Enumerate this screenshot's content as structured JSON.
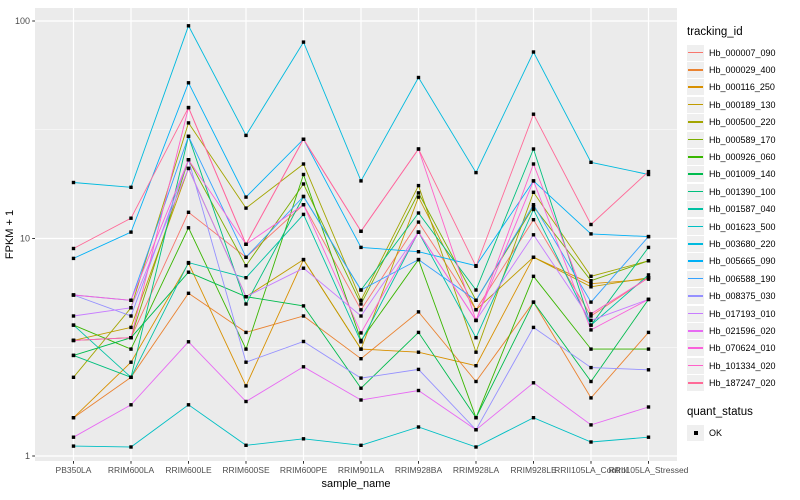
{
  "chart_data": {
    "type": "line",
    "xlabel": "sample_name",
    "ylabel": "FPKM + 1",
    "y_scale": "log10",
    "y_ticks": [
      {
        "label": "1",
        "value": 1
      },
      {
        "label": "10",
        "value": 10
      },
      {
        "label": "100",
        "value": 100
      }
    ],
    "y_minor_log": [
      0.5,
      1.5
    ],
    "ylim": [
      1,
      115
    ],
    "grid": "on",
    "legend_position": "right",
    "panel_bg": "#EBEBEB",
    "grid_color": "#FFFFFF",
    "axis_text_color": "#4D4D4D",
    "tick_color": "#333333",
    "marker_color": "#000000",
    "categories": [
      "PB350LA",
      "RRIM600LA",
      "RRIM600LE",
      "RRIM600SE",
      "RRIM600PE",
      "RRIM901LA",
      "RRIM928BA",
      "RRIM928LA",
      "RRIM928LE",
      "RRII105LA_Control",
      "RRII105LA_Stressed"
    ],
    "legend": {
      "color_title": "tracking_id",
      "shape_title": "quant_status",
      "shape_value": "OK"
    },
    "series": [
      {
        "tracking_id": "Hb_000007_090",
        "color": "#F8766D",
        "values": [
          3.4,
          3.5,
          13.2,
          8.2,
          14.3,
          4.7,
          11.9,
          4.7,
          12.2,
          4.4,
          6.6
        ]
      },
      {
        "tracking_id": "Hb_000029_400",
        "color": "#EA8331",
        "values": [
          1.5,
          2.3,
          5.6,
          3.7,
          4.4,
          2.8,
          4.6,
          2.2,
          5.1,
          1.85,
          3.7
        ]
      },
      {
        "tracking_id": "Hb_000116_250",
        "color": "#D89000",
        "values": [
          1.5,
          2.7,
          7.7,
          2.1,
          8.0,
          3.1,
          3.0,
          2.6,
          8.2,
          6.2,
          6.5
        ]
      },
      {
        "tracking_id": "Hb_000189_130",
        "color": "#C09B00",
        "values": [
          3.4,
          3.9,
          21,
          5.4,
          8.0,
          3.1,
          15.5,
          4.7,
          8.2,
          6.0,
          6.6
        ]
      },
      {
        "tracking_id": "Hb_000500_220",
        "color": "#A3A500",
        "values": [
          2.3,
          4.8,
          34,
          13.8,
          22,
          5.2,
          17.5,
          3.0,
          16.3,
          6.7,
          7.9
        ]
      },
      {
        "tracking_id": "Hb_000589_170",
        "color": "#7CAE00",
        "values": [
          3.4,
          3.5,
          23,
          7.5,
          17.8,
          5.0,
          16.2,
          5.2,
          14.0,
          6.4,
          7.9
        ]
      },
      {
        "tracking_id": "Hb_000926_060",
        "color": "#39B600",
        "values": [
          4.0,
          3.1,
          11.2,
          3.1,
          19.7,
          3.4,
          8.0,
          1.5,
          6.7,
          3.1,
          3.1
        ]
      },
      {
        "tracking_id": "Hb_001009_140",
        "color": "#00BB4E",
        "values": [
          2.9,
          3.5,
          7.0,
          5.4,
          4.9,
          2.05,
          3.7,
          1.5,
          5.1,
          2.2,
          5.25
        ]
      },
      {
        "tracking_id": "Hb_001390_100",
        "color": "#00BF7D",
        "values": [
          2.9,
          2.3,
          29.5,
          5.0,
          15.6,
          5.8,
          13.1,
          5.8,
          25.8,
          4.0,
          9.1
        ]
      },
      {
        "tracking_id": "Hb_001587_040",
        "color": "#00C1A3",
        "values": [
          4.0,
          2.3,
          7.75,
          6.6,
          12.9,
          3.35,
          10.7,
          3.5,
          13.6,
          4.0,
          6.8
        ]
      },
      {
        "tracking_id": "Hb_001623_500",
        "color": "#00BFC4",
        "values": [
          1.11,
          1.1,
          1.72,
          1.12,
          1.2,
          1.12,
          1.36,
          1.1,
          1.5,
          1.16,
          1.22
        ]
      },
      {
        "tracking_id": "Hb_003680_220",
        "color": "#00BADE",
        "values": [
          18.1,
          17.2,
          95,
          29.8,
          80,
          18.4,
          55,
          20.1,
          72,
          22.4,
          19.7
        ]
      },
      {
        "tracking_id": "Hb_005665_090",
        "color": "#00B0F6",
        "values": [
          8.1,
          10.7,
          52,
          15.5,
          28.6,
          9.1,
          8.7,
          7.5,
          18.4,
          10.5,
          10.2
        ]
      },
      {
        "tracking_id": "Hb_006588_190",
        "color": "#35A2FF",
        "values": [
          5.5,
          5.2,
          29.5,
          8.2,
          15.6,
          5.8,
          8.0,
          5.2,
          14.3,
          5.1,
          10.2
        ]
      },
      {
        "tracking_id": "Hb_008375_030",
        "color": "#9590FF",
        "values": [
          5.5,
          4.4,
          23,
          2.7,
          3.36,
          2.28,
          2.5,
          1.32,
          3.9,
          2.55,
          2.49
        ]
      },
      {
        "tracking_id": "Hb_017193_010",
        "color": "#C77CFF",
        "values": [
          4.4,
          4.8,
          21,
          5.4,
          7.3,
          4.4,
          10.7,
          4.2,
          10.4,
          4.2,
          5.25
        ]
      },
      {
        "tracking_id": "Hb_021596_020",
        "color": "#E76BF3",
        "values": [
          1.22,
          1.72,
          3.35,
          1.78,
          2.57,
          1.81,
          2.0,
          1.32,
          2.17,
          1.39,
          1.68
        ]
      },
      {
        "tracking_id": "Hb_070624_010",
        "color": "#FA62DB",
        "values": [
          5.5,
          5.2,
          23,
          9.4,
          14.3,
          3.68,
          10.7,
          4.2,
          18.4,
          3.8,
          5.25
        ]
      },
      {
        "tracking_id": "Hb_101334_020",
        "color": "#FF61C9",
        "values": [
          3.4,
          3.5,
          40,
          9.4,
          28.6,
          10.8,
          25.8,
          4.2,
          22,
          4.5,
          6.6
        ]
      },
      {
        "tracking_id": "Hb_187247_020",
        "color": "#FF6A98",
        "values": [
          9.0,
          12.4,
          40,
          9.4,
          28.6,
          10.8,
          25.8,
          7.45,
          37.3,
          11.6,
          20.3
        ]
      }
    ]
  }
}
